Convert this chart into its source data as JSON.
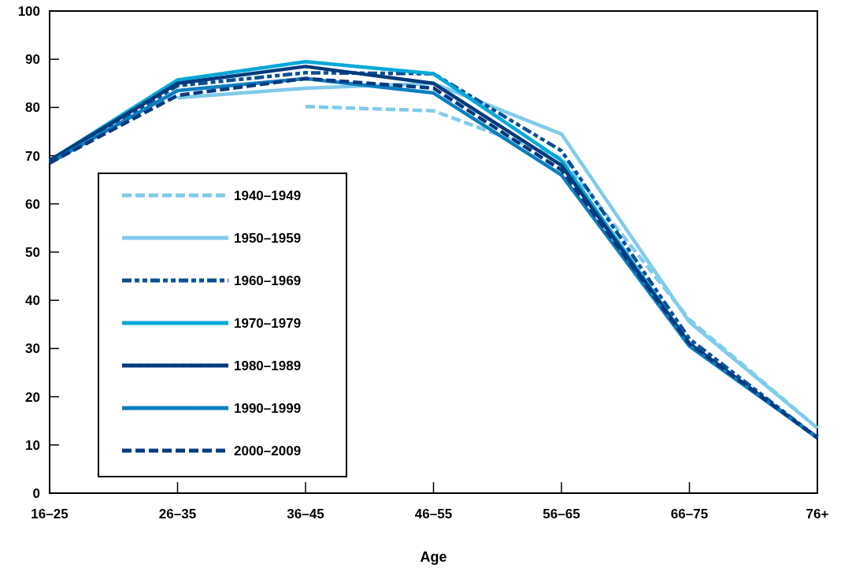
{
  "chart_data": {
    "type": "line",
    "xlabel": "Age",
    "categories": [
      "16–25",
      "26–35",
      "36–45",
      "46–55",
      "56–65",
      "66–75",
      "76+"
    ],
    "ylim": [
      0,
      100
    ],
    "yticks": [
      0,
      10,
      20,
      30,
      40,
      50,
      60,
      70,
      80,
      90,
      100
    ],
    "grid": false,
    "legend": "left",
    "marker": "none",
    "series": [
      {
        "name": "1940–1949",
        "color": "#7fcbea",
        "line_style": "dashed",
        "values": [
          null,
          null,
          80.2,
          79.3,
          69.5,
          36,
          13.5
        ]
      },
      {
        "name": "1950–1959",
        "color": "#7fcbea",
        "line_style": "solid",
        "values": [
          null,
          82,
          84,
          85,
          74.5,
          35.5,
          13.5
        ]
      },
      {
        "name": "1960–1969",
        "color": "#0b4f94",
        "line_style": "dashdot",
        "values": [
          68.5,
          84.5,
          87.2,
          87,
          71,
          32,
          11.5
        ]
      },
      {
        "name": "1970–1979",
        "color": "#00a8d8",
        "line_style": "solid",
        "values": [
          69,
          85.7,
          89.5,
          87,
          69,
          31,
          11.5
        ]
      },
      {
        "name": "1980–1989",
        "color": "#003a7d",
        "line_style": "solid",
        "values": [
          69,
          85,
          88.5,
          85,
          68,
          31,
          11.5
        ]
      },
      {
        "name": "1990–1999",
        "color": "#0a7fc0",
        "line_style": "solid",
        "values": [
          68.5,
          83.5,
          86,
          83,
          66,
          30.5,
          11.5
        ]
      },
      {
        "name": "2000–2009",
        "color": "#063a80",
        "line_style": "dashed",
        "values": [
          68.5,
          82.5,
          86,
          84,
          67,
          31,
          11.5
        ]
      }
    ]
  }
}
